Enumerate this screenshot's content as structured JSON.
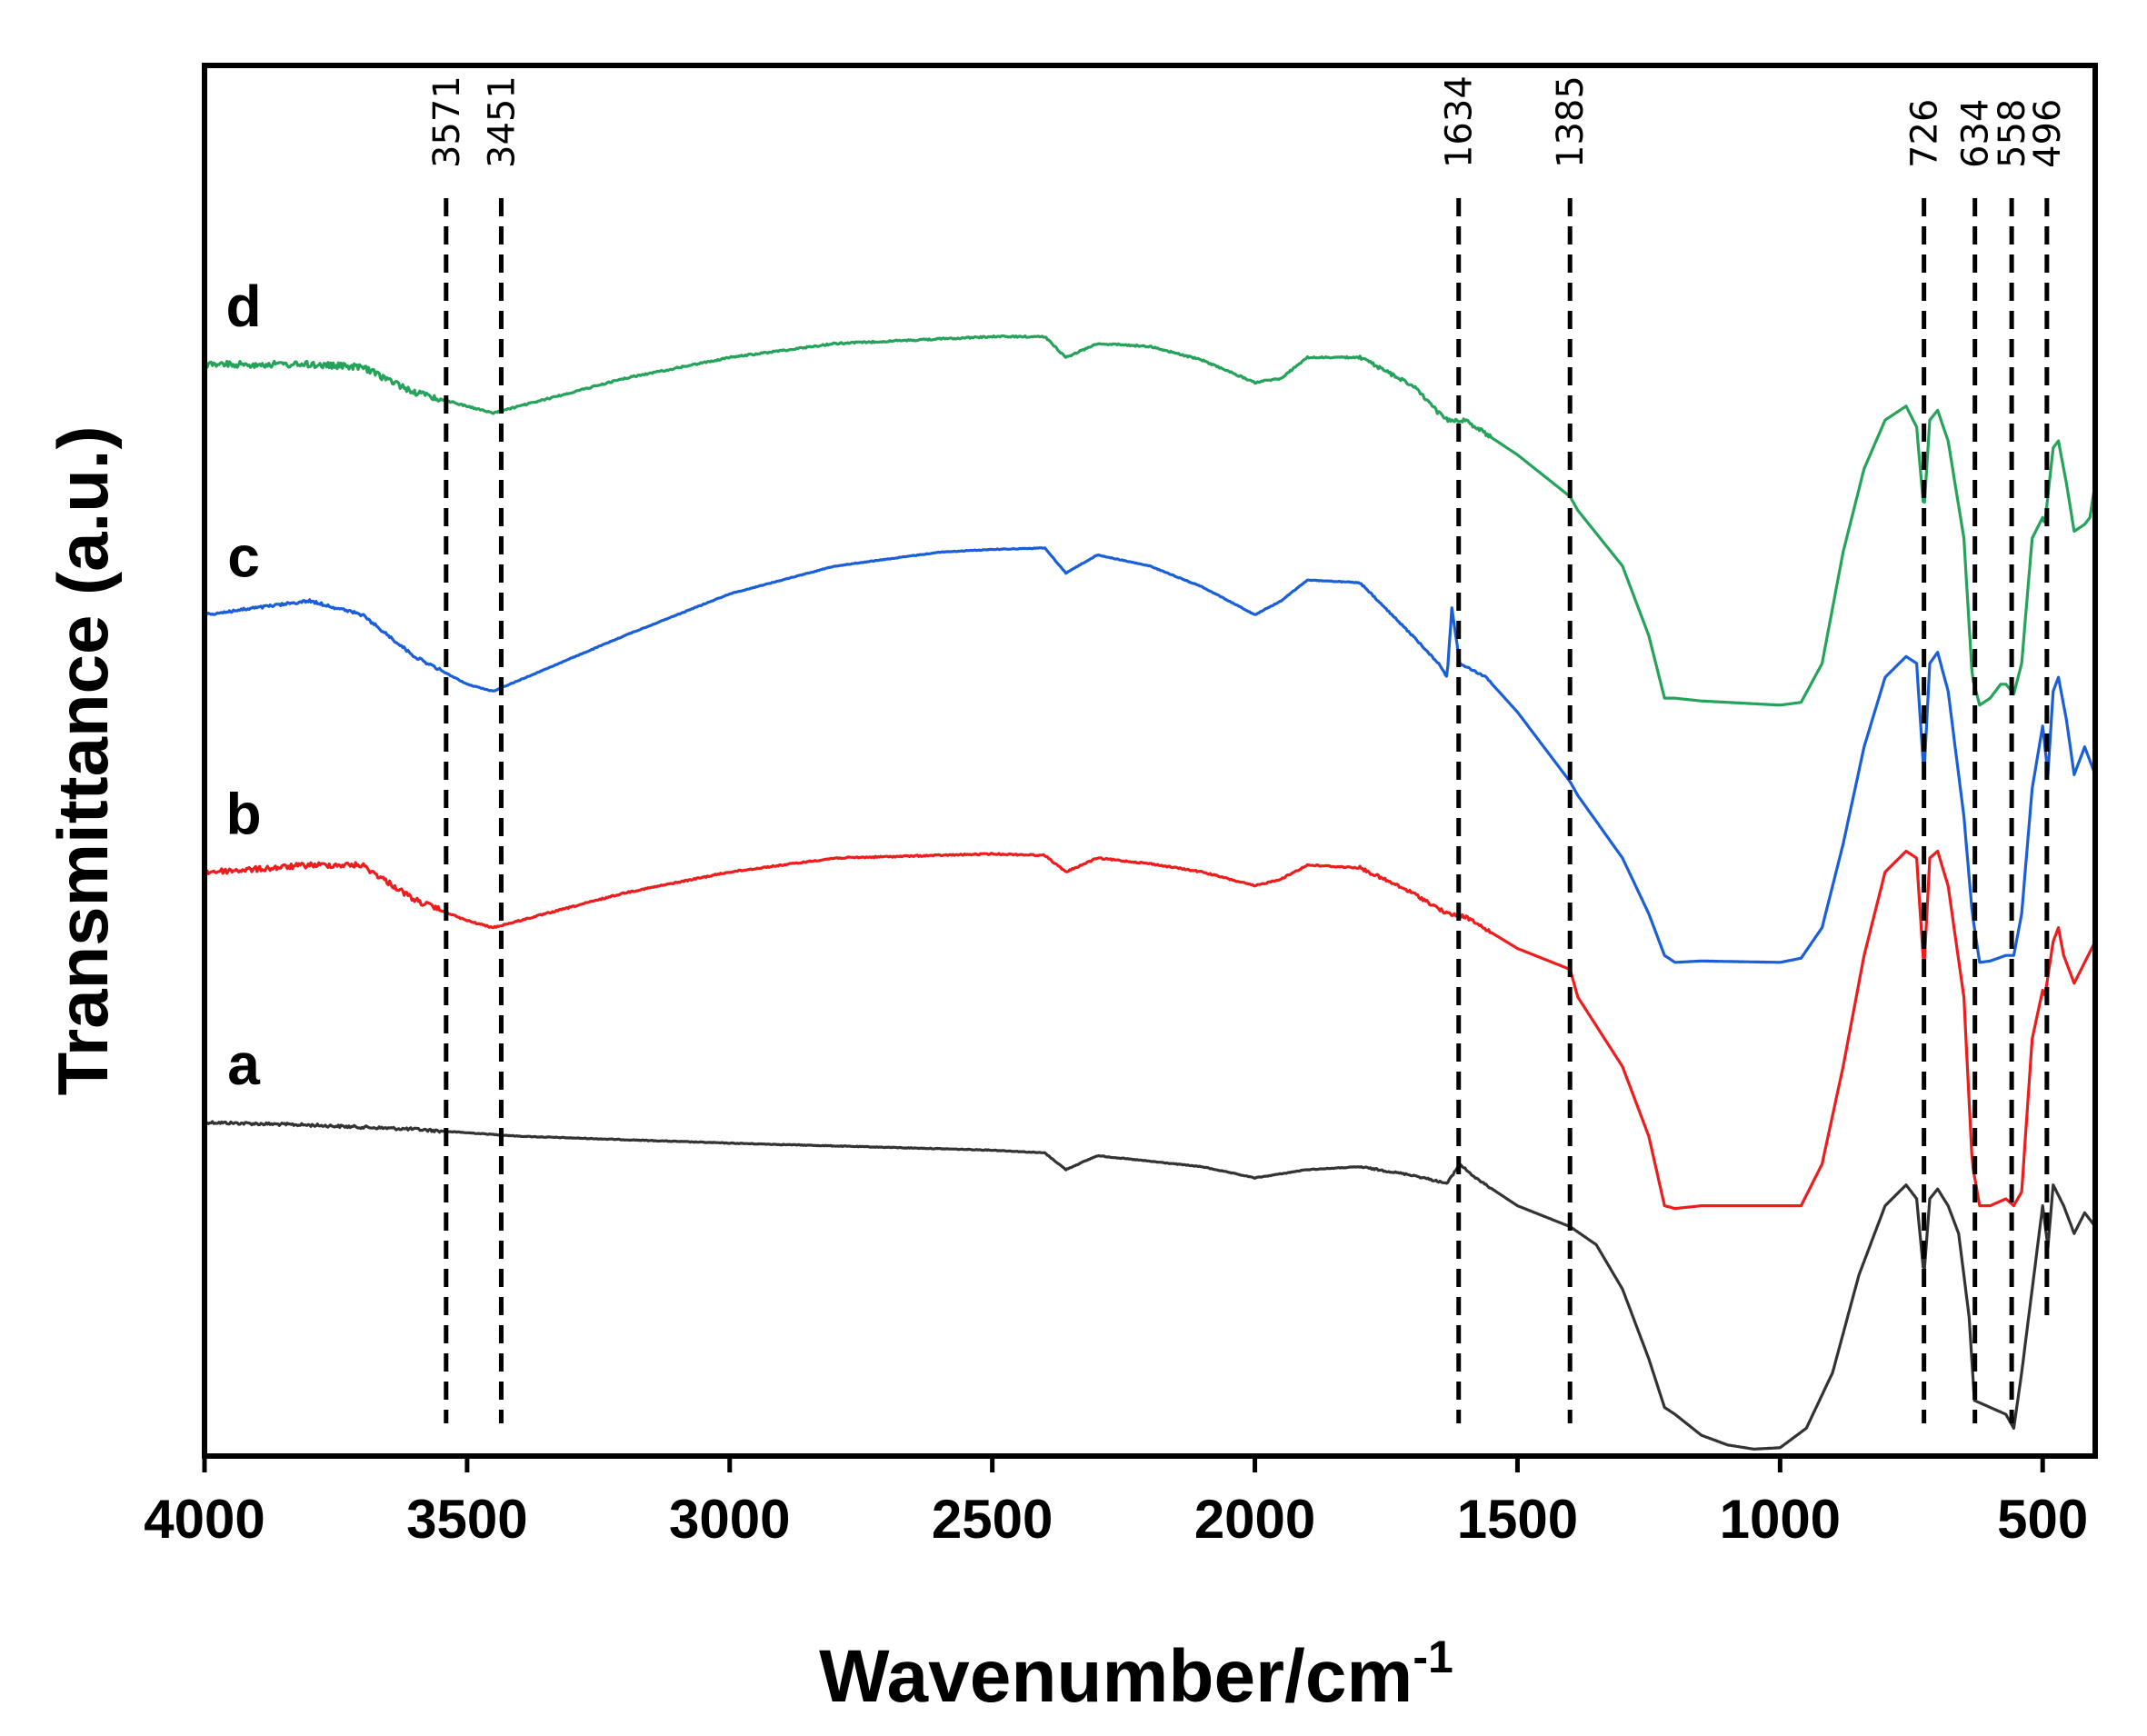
{
  "chart_data": {
    "type": "line",
    "title": "",
    "xlabel": "Wavenumber/cm",
    "xlabel_superscript": "-1",
    "ylabel": "Transmittance (a.u.)",
    "xlim": [
      4000,
      400
    ],
    "ylim": [
      0,
      100
    ],
    "x_ticks": [
      4000,
      3500,
      3000,
      2500,
      2000,
      1500,
      1000,
      500
    ],
    "x_tick_labels": [
      "4000",
      "3500",
      "3000",
      "2500",
      "2000",
      "1500",
      "1000",
      "500"
    ],
    "grid": false,
    "series": [
      {
        "name": "a",
        "label": "a",
        "color": "#333333",
        "noise": 3,
        "points": [
          [
            4000,
            24
          ],
          [
            3800,
            23.8
          ],
          [
            3600,
            23.5
          ],
          [
            3400,
            23
          ],
          [
            3000,
            22.5
          ],
          [
            2500,
            22
          ],
          [
            2400,
            21.8
          ],
          [
            2360,
            20.6
          ],
          [
            2300,
            21.6
          ],
          [
            2100,
            20.8
          ],
          [
            2000,
            20
          ],
          [
            1900,
            20.6
          ],
          [
            1800,
            20.8
          ],
          [
            1700,
            20.2
          ],
          [
            1634,
            19.6
          ],
          [
            1610,
            21
          ],
          [
            1580,
            20
          ],
          [
            1500,
            18
          ],
          [
            1400,
            16.5
          ],
          [
            1350,
            15.2
          ],
          [
            1300,
            12
          ],
          [
            1250,
            7
          ],
          [
            1220,
            3.5
          ],
          [
            1200,
            3
          ],
          [
            1150,
            1.5
          ],
          [
            1100,
            0.8
          ],
          [
            1050,
            0.5
          ],
          [
            1000,
            0.6
          ],
          [
            950,
            2
          ],
          [
            900,
            6
          ],
          [
            850,
            13
          ],
          [
            800,
            18
          ],
          [
            760,
            19.5
          ],
          [
            740,
            18.5
          ],
          [
            726,
            13
          ],
          [
            715,
            18.5
          ],
          [
            700,
            19.2
          ],
          [
            680,
            18
          ],
          [
            660,
            16
          ],
          [
            640,
            10
          ],
          [
            630,
            4
          ],
          [
            600,
            3.5
          ],
          [
            570,
            3
          ],
          [
            555,
            2
          ],
          [
            540,
            6
          ],
          [
            520,
            12
          ],
          [
            500,
            18
          ],
          [
            490,
            15
          ],
          [
            480,
            19.5
          ],
          [
            460,
            18
          ],
          [
            440,
            16
          ],
          [
            420,
            17.5
          ],
          [
            400,
            16.5
          ]
        ]
      },
      {
        "name": "b",
        "label": "b",
        "color": "#ee1c1c",
        "noise": 6,
        "points": [
          [
            4000,
            42
          ],
          [
            3900,
            42.2
          ],
          [
            3800,
            42.5
          ],
          [
            3700,
            42.5
          ],
          [
            3600,
            40
          ],
          [
            3500,
            38.5
          ],
          [
            3451,
            38
          ],
          [
            3400,
            38.5
          ],
          [
            3200,
            40.5
          ],
          [
            3000,
            42
          ],
          [
            2800,
            43
          ],
          [
            2500,
            43.3
          ],
          [
            2400,
            43.2
          ],
          [
            2360,
            42
          ],
          [
            2300,
            43
          ],
          [
            2200,
            42.6
          ],
          [
            2100,
            42
          ],
          [
            2000,
            41
          ],
          [
            1950,
            41.5
          ],
          [
            1900,
            42.5
          ],
          [
            1800,
            42.3
          ],
          [
            1700,
            40.5
          ],
          [
            1634,
            39
          ],
          [
            1600,
            38.8
          ],
          [
            1500,
            36.5
          ],
          [
            1400,
            35
          ],
          [
            1385,
            33
          ],
          [
            1300,
            28
          ],
          [
            1250,
            23
          ],
          [
            1220,
            18
          ],
          [
            1200,
            17.8
          ],
          [
            1150,
            18
          ],
          [
            1000,
            18
          ],
          [
            960,
            18
          ],
          [
            920,
            21
          ],
          [
            880,
            28
          ],
          [
            840,
            36
          ],
          [
            800,
            42
          ],
          [
            760,
            43.5
          ],
          [
            740,
            43
          ],
          [
            726,
            35
          ],
          [
            715,
            43
          ],
          [
            700,
            43.5
          ],
          [
            680,
            41
          ],
          [
            650,
            33
          ],
          [
            634,
            21
          ],
          [
            620,
            18
          ],
          [
            600,
            18
          ],
          [
            570,
            18.5
          ],
          [
            555,
            18
          ],
          [
            540,
            19
          ],
          [
            520,
            30
          ],
          [
            500,
            33.5
          ],
          [
            496,
            33
          ],
          [
            480,
            37
          ],
          [
            470,
            38
          ],
          [
            460,
            36
          ],
          [
            440,
            34
          ],
          [
            420,
            35.5
          ],
          [
            400,
            37
          ]
        ]
      },
      {
        "name": "c",
        "label": "c",
        "color": "#1a5fd8",
        "noise": 3,
        "points": [
          [
            4000,
            60.5
          ],
          [
            3900,
            61
          ],
          [
            3800,
            61.5
          ],
          [
            3700,
            60.5
          ],
          [
            3600,
            57.5
          ],
          [
            3500,
            55.5
          ],
          [
            3451,
            55
          ],
          [
            3400,
            55.8
          ],
          [
            3200,
            59
          ],
          [
            3000,
            62
          ],
          [
            2800,
            64
          ],
          [
            2600,
            65
          ],
          [
            2500,
            65.2
          ],
          [
            2400,
            65.3
          ],
          [
            2360,
            63.5
          ],
          [
            2300,
            64.8
          ],
          [
            2200,
            64
          ],
          [
            2100,
            62.5
          ],
          [
            2000,
            60.5
          ],
          [
            1950,
            61.5
          ],
          [
            1900,
            63
          ],
          [
            1800,
            62.8
          ],
          [
            1700,
            59
          ],
          [
            1650,
            57
          ],
          [
            1634,
            56
          ],
          [
            1625,
            61
          ],
          [
            1610,
            57
          ],
          [
            1560,
            56
          ],
          [
            1500,
            53.5
          ],
          [
            1400,
            48.5
          ],
          [
            1385,
            47.5
          ],
          [
            1300,
            43
          ],
          [
            1250,
            39
          ],
          [
            1220,
            36
          ],
          [
            1200,
            35.5
          ],
          [
            1150,
            35.6
          ],
          [
            1000,
            35.5
          ],
          [
            960,
            35.8
          ],
          [
            920,
            38
          ],
          [
            880,
            44
          ],
          [
            840,
            51
          ],
          [
            800,
            56
          ],
          [
            760,
            57.5
          ],
          [
            740,
            57
          ],
          [
            726,
            49
          ],
          [
            715,
            57
          ],
          [
            700,
            57.8
          ],
          [
            680,
            55
          ],
          [
            650,
            46
          ],
          [
            634,
            39
          ],
          [
            620,
            35.5
          ],
          [
            600,
            35.6
          ],
          [
            570,
            36
          ],
          [
            555,
            36
          ],
          [
            540,
            39
          ],
          [
            520,
            48
          ],
          [
            500,
            52.5
          ],
          [
            490,
            49
          ],
          [
            480,
            55
          ],
          [
            470,
            56
          ],
          [
            455,
            53
          ],
          [
            440,
            49
          ],
          [
            420,
            51
          ],
          [
            400,
            49
          ]
        ]
      },
      {
        "name": "d",
        "label": "d",
        "color": "#25a35a",
        "noise": 7,
        "points": [
          [
            4000,
            78.5
          ],
          [
            3900,
            78.5
          ],
          [
            3800,
            78.5
          ],
          [
            3700,
            78.3
          ],
          [
            3600,
            76.5
          ],
          [
            3500,
            75.5
          ],
          [
            3451,
            75
          ],
          [
            3400,
            75.5
          ],
          [
            3200,
            77.5
          ],
          [
            3000,
            79
          ],
          [
            2800,
            80
          ],
          [
            2500,
            80.5
          ],
          [
            2400,
            80.5
          ],
          [
            2360,
            79
          ],
          [
            2300,
            80
          ],
          [
            2200,
            79.8
          ],
          [
            2100,
            78.8
          ],
          [
            2000,
            77.2
          ],
          [
            1950,
            77.5
          ],
          [
            1900,
            79
          ],
          [
            1800,
            79
          ],
          [
            1700,
            77
          ],
          [
            1650,
            75
          ],
          [
            1634,
            74.5
          ],
          [
            1600,
            74.5
          ],
          [
            1500,
            72
          ],
          [
            1400,
            69
          ],
          [
            1385,
            68
          ],
          [
            1300,
            64
          ],
          [
            1250,
            59
          ],
          [
            1220,
            54.5
          ],
          [
            1200,
            54.5
          ],
          [
            1150,
            54.3
          ],
          [
            1000,
            54
          ],
          [
            960,
            54.2
          ],
          [
            920,
            57
          ],
          [
            880,
            65
          ],
          [
            840,
            71
          ],
          [
            800,
            74.5
          ],
          [
            760,
            75.5
          ],
          [
            740,
            74
          ],
          [
            726,
            68
          ],
          [
            715,
            74.5
          ],
          [
            700,
            75.2
          ],
          [
            680,
            73
          ],
          [
            650,
            66
          ],
          [
            634,
            56
          ],
          [
            620,
            54
          ],
          [
            600,
            54.5
          ],
          [
            580,
            55.5
          ],
          [
            570,
            55.5
          ],
          [
            555,
            54.8
          ],
          [
            540,
            57
          ],
          [
            520,
            66
          ],
          [
            500,
            67.5
          ],
          [
            496,
            67
          ],
          [
            480,
            72.5
          ],
          [
            470,
            73
          ],
          [
            455,
            70
          ],
          [
            440,
            66.5
          ],
          [
            420,
            67
          ],
          [
            410,
            67.5
          ],
          [
            400,
            70
          ]
        ]
      }
    ],
    "peak_markers": [
      {
        "label": "3571",
        "value": 3540
      },
      {
        "label": "3451",
        "value": 3435
      },
      {
        "label": "1634",
        "value": 1612
      },
      {
        "label": "1385",
        "value": 1400
      },
      {
        "label": "726",
        "value": 726
      },
      {
        "label": "634",
        "value": 629
      },
      {
        "label": "558",
        "value": 559
      },
      {
        "label": "496",
        "value": 492
      }
    ]
  }
}
